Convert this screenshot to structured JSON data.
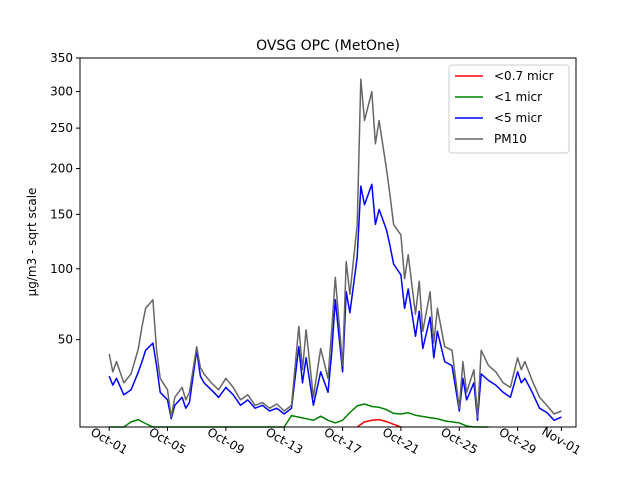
{
  "chart_data": {
    "type": "line",
    "title": "OVSG OPC (MetOne)",
    "xlabel": "",
    "ylabel": "µg/m3 - sqrt scale",
    "y_scale": "sqrt",
    "ylim": [
      12,
      350
    ],
    "xlim": [
      "2023-09-29",
      "2023-11-02"
    ],
    "x_ticks": [
      "Oct-01",
      "Oct-05",
      "Oct-09",
      "Oct-13",
      "Oct-17",
      "Oct-21",
      "Oct-25",
      "Oct-29",
      "Nov-01"
    ],
    "x_tick_dates": [
      "2023-10-01",
      "2023-10-05",
      "2023-10-09",
      "2023-10-13",
      "2023-10-17",
      "2023-10-21",
      "2023-10-25",
      "2023-10-29",
      "2023-11-01"
    ],
    "y_ticks": [
      50,
      100,
      150,
      200,
      250,
      300,
      350
    ],
    "grid": false,
    "legend_position": "top-right",
    "series": [
      {
        "name": "<0.7 micr",
        "color": "#ff0000",
        "points": [
          [
            "2023-10-18",
            12
          ],
          [
            "2023-10-18T12:00",
            13.5
          ],
          [
            "2023-10-19",
            14
          ],
          [
            "2023-10-19T12:00",
            14.2
          ],
          [
            "2023-10-20",
            13.6
          ],
          [
            "2023-10-20T12:00",
            12.8
          ],
          [
            "2023-10-21",
            12
          ]
        ]
      },
      {
        "name": "<1 micr",
        "color": "#008000",
        "points": [
          [
            "2023-10-01",
            12
          ],
          [
            "2023-10-02",
            12
          ],
          [
            "2023-10-02T12:00",
            13.5
          ],
          [
            "2023-10-03",
            14.2
          ],
          [
            "2023-10-03T12:00",
            13
          ],
          [
            "2023-10-04",
            12
          ],
          [
            "2023-10-05",
            12
          ],
          [
            "2023-10-12",
            12
          ],
          [
            "2023-10-13",
            12
          ],
          [
            "2023-10-13T12:00",
            15.5
          ],
          [
            "2023-10-14",
            15
          ],
          [
            "2023-10-15",
            14
          ],
          [
            "2023-10-15T12:00",
            15.3
          ],
          [
            "2023-10-16",
            14
          ],
          [
            "2023-10-16T12:00",
            13.2
          ],
          [
            "2023-10-17",
            14
          ],
          [
            "2023-10-17T12:00",
            16.5
          ],
          [
            "2023-10-18",
            18.8
          ],
          [
            "2023-10-18T12:00",
            19.5
          ],
          [
            "2023-10-19",
            18.6
          ],
          [
            "2023-10-19T12:00",
            18.3
          ],
          [
            "2023-10-20",
            17.5
          ],
          [
            "2023-10-20T12:00",
            16.2
          ],
          [
            "2023-10-21",
            16
          ],
          [
            "2023-10-21T12:00",
            16.4
          ],
          [
            "2023-10-22",
            15.6
          ],
          [
            "2023-10-23",
            14.8
          ],
          [
            "2023-10-23T12:00",
            14.5
          ],
          [
            "2023-10-24",
            13.8
          ],
          [
            "2023-10-25",
            13.2
          ],
          [
            "2023-10-25T12:00",
            12.3
          ],
          [
            "2023-10-26",
            12
          ],
          [
            "2023-10-27",
            12
          ]
        ]
      },
      {
        "name": "<5 micr",
        "color": "#0000ff",
        "points": [
          [
            "2023-10-01",
            31
          ],
          [
            "2023-10-01T06:00",
            27
          ],
          [
            "2023-10-01T12:00",
            30
          ],
          [
            "2023-10-02",
            23
          ],
          [
            "2023-10-02T12:00",
            25
          ],
          [
            "2023-10-03",
            33
          ],
          [
            "2023-10-03T06:00",
            38
          ],
          [
            "2023-10-03T12:00",
            44
          ],
          [
            "2023-10-04",
            48
          ],
          [
            "2023-10-04T06:00",
            36
          ],
          [
            "2023-10-04T12:00",
            24
          ],
          [
            "2023-10-05",
            21
          ],
          [
            "2023-10-05T06:00",
            14.5
          ],
          [
            "2023-10-05T12:00",
            19
          ],
          [
            "2023-10-06",
            22
          ],
          [
            "2023-10-06T06:00",
            18
          ],
          [
            "2023-10-06T12:00",
            20
          ],
          [
            "2023-10-07",
            44
          ],
          [
            "2023-10-07T06:00",
            31
          ],
          [
            "2023-10-07T12:00",
            28
          ],
          [
            "2023-10-08",
            25
          ],
          [
            "2023-10-08T12:00",
            22
          ],
          [
            "2023-10-09",
            26
          ],
          [
            "2023-10-09T12:00",
            23
          ],
          [
            "2023-10-10",
            19
          ],
          [
            "2023-10-10T12:00",
            21
          ],
          [
            "2023-10-11",
            18
          ],
          [
            "2023-10-11T12:00",
            19
          ],
          [
            "2023-10-12",
            17
          ],
          [
            "2023-10-12T12:00",
            18
          ],
          [
            "2023-10-13",
            16
          ],
          [
            "2023-10-13T12:00",
            18
          ],
          [
            "2023-10-14",
            46
          ],
          [
            "2023-10-14T06:00",
            28
          ],
          [
            "2023-10-14T12:00",
            40
          ],
          [
            "2023-10-15",
            19
          ],
          [
            "2023-10-15T12:00",
            33
          ],
          [
            "2023-10-16",
            24
          ],
          [
            "2023-10-16T06:00",
            42
          ],
          [
            "2023-10-16T12:00",
            76
          ],
          [
            "2023-10-17",
            33
          ],
          [
            "2023-10-17T06:00",
            82
          ],
          [
            "2023-10-17T12:00",
            67
          ],
          [
            "2023-10-18",
            110
          ],
          [
            "2023-10-18T06:00",
            180
          ],
          [
            "2023-10-18T12:00",
            160
          ],
          [
            "2023-10-19",
            182
          ],
          [
            "2023-10-19T06:00",
            140
          ],
          [
            "2023-10-19T12:00",
            155
          ],
          [
            "2023-10-20",
            135
          ],
          [
            "2023-10-20T06:00",
            120
          ],
          [
            "2023-10-20T12:00",
            104
          ],
          [
            "2023-10-21",
            95
          ],
          [
            "2023-10-21T06:00",
            70
          ],
          [
            "2023-10-21T12:00",
            84
          ],
          [
            "2023-10-22",
            52
          ],
          [
            "2023-10-22T06:00",
            68
          ],
          [
            "2023-10-22T12:00",
            45
          ],
          [
            "2023-10-23",
            64
          ],
          [
            "2023-10-23T06:00",
            40
          ],
          [
            "2023-10-23T12:00",
            55
          ],
          [
            "2023-10-24",
            38
          ],
          [
            "2023-10-24T12:00",
            36
          ],
          [
            "2023-10-25",
            17
          ],
          [
            "2023-10-25T06:00",
            30
          ],
          [
            "2023-10-25T12:00",
            21
          ],
          [
            "2023-10-26",
            28
          ],
          [
            "2023-10-26T06:00",
            14
          ],
          [
            "2023-10-26T12:00",
            32
          ],
          [
            "2023-10-27",
            29
          ],
          [
            "2023-10-27T12:00",
            27
          ],
          [
            "2023-10-28",
            24
          ],
          [
            "2023-10-28T12:00",
            22
          ],
          [
            "2023-10-29",
            33
          ],
          [
            "2023-10-29T06:00",
            28
          ],
          [
            "2023-10-29T12:00",
            30
          ],
          [
            "2023-10-30",
            24
          ],
          [
            "2023-10-30T12:00",
            18
          ],
          [
            "2023-10-31",
            16.5
          ],
          [
            "2023-10-31T12:00",
            14
          ],
          [
            "2023-11-01",
            15
          ]
        ]
      },
      {
        "name": "PM10",
        "color": "#666666",
        "points": [
          [
            "2023-10-01",
            42
          ],
          [
            "2023-10-01T06:00",
            33
          ],
          [
            "2023-10-01T12:00",
            38
          ],
          [
            "2023-10-02",
            28
          ],
          [
            "2023-10-02T12:00",
            32
          ],
          [
            "2023-10-03",
            45
          ],
          [
            "2023-10-03T06:00",
            58
          ],
          [
            "2023-10-03T12:00",
            70
          ],
          [
            "2023-10-04",
            76
          ],
          [
            "2023-10-04T06:00",
            44
          ],
          [
            "2023-10-04T12:00",
            30
          ],
          [
            "2023-10-05",
            25
          ],
          [
            "2023-10-05T06:00",
            15
          ],
          [
            "2023-10-05T12:00",
            22
          ],
          [
            "2023-10-06",
            26
          ],
          [
            "2023-10-06T06:00",
            21
          ],
          [
            "2023-10-06T12:00",
            24
          ],
          [
            "2023-10-07",
            46
          ],
          [
            "2023-10-07T06:00",
            35
          ],
          [
            "2023-10-07T12:00",
            32
          ],
          [
            "2023-10-08",
            28
          ],
          [
            "2023-10-08T12:00",
            25
          ],
          [
            "2023-10-09",
            30
          ],
          [
            "2023-10-09T12:00",
            26
          ],
          [
            "2023-10-10",
            21
          ],
          [
            "2023-10-10T12:00",
            23
          ],
          [
            "2023-10-11",
            19
          ],
          [
            "2023-10-11T12:00",
            20
          ],
          [
            "2023-10-12",
            18
          ],
          [
            "2023-10-12T12:00",
            19.5
          ],
          [
            "2023-10-13",
            17
          ],
          [
            "2023-10-13T12:00",
            19
          ],
          [
            "2023-10-14",
            58
          ],
          [
            "2023-10-14T06:00",
            34
          ],
          [
            "2023-10-14T12:00",
            56
          ],
          [
            "2023-10-15",
            22
          ],
          [
            "2023-10-15T12:00",
            45
          ],
          [
            "2023-10-16",
            30
          ],
          [
            "2023-10-16T06:00",
            55
          ],
          [
            "2023-10-16T12:00",
            93
          ],
          [
            "2023-10-17",
            36
          ],
          [
            "2023-10-17T06:00",
            106
          ],
          [
            "2023-10-17T12:00",
            80
          ],
          [
            "2023-10-18",
            140
          ],
          [
            "2023-10-18T06:00",
            318
          ],
          [
            "2023-10-18T12:00",
            260
          ],
          [
            "2023-10-19",
            300
          ],
          [
            "2023-10-19T06:00",
            230
          ],
          [
            "2023-10-19T12:00",
            260
          ],
          [
            "2023-10-20",
            200
          ],
          [
            "2023-10-20T06:00",
            170
          ],
          [
            "2023-10-20T12:00",
            140
          ],
          [
            "2023-10-21",
            130
          ],
          [
            "2023-10-21T06:00",
            92
          ],
          [
            "2023-10-21T12:00",
            112
          ],
          [
            "2023-10-22",
            66
          ],
          [
            "2023-10-22T06:00",
            90
          ],
          [
            "2023-10-22T12:00",
            55
          ],
          [
            "2023-10-23",
            82
          ],
          [
            "2023-10-23T06:00",
            48
          ],
          [
            "2023-10-23T12:00",
            70
          ],
          [
            "2023-10-24",
            46
          ],
          [
            "2023-10-24T12:00",
            44
          ],
          [
            "2023-10-25",
            18
          ],
          [
            "2023-10-25T06:00",
            38
          ],
          [
            "2023-10-25T12:00",
            24
          ],
          [
            "2023-10-26",
            34
          ],
          [
            "2023-10-26T06:00",
            15
          ],
          [
            "2023-10-26T12:00",
            44
          ],
          [
            "2023-10-27",
            36
          ],
          [
            "2023-10-27T12:00",
            33
          ],
          [
            "2023-10-28",
            28
          ],
          [
            "2023-10-28T12:00",
            26
          ],
          [
            "2023-10-29",
            40
          ],
          [
            "2023-10-29T06:00",
            34
          ],
          [
            "2023-10-29T12:00",
            38
          ],
          [
            "2023-10-30",
            29
          ],
          [
            "2023-10-30T12:00",
            22
          ],
          [
            "2023-10-31",
            19
          ],
          [
            "2023-10-31T12:00",
            16
          ],
          [
            "2023-11-01",
            17
          ]
        ]
      }
    ]
  }
}
